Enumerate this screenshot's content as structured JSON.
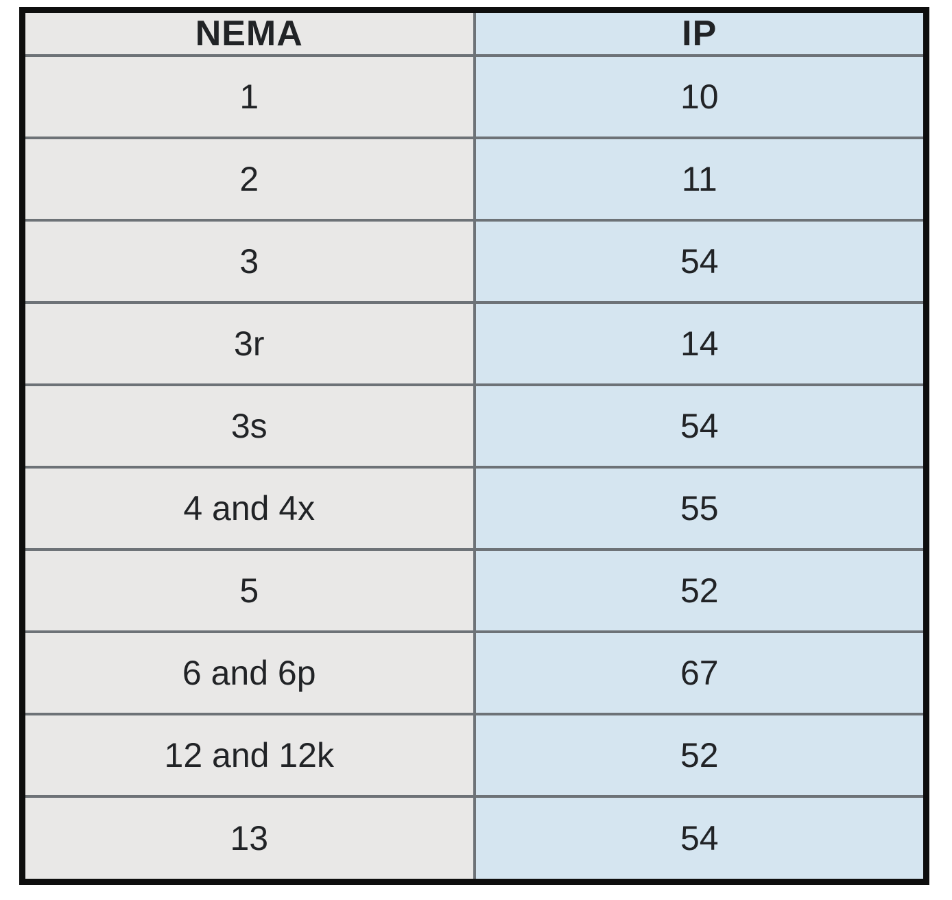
{
  "table": {
    "columns": [
      {
        "key": "nema",
        "label": "NEMA"
      },
      {
        "key": "ip",
        "label": "IP"
      }
    ],
    "rows": [
      {
        "nema": "1",
        "ip": "10"
      },
      {
        "nema": "2",
        "ip": "11"
      },
      {
        "nema": "3",
        "ip": "54"
      },
      {
        "nema": "3r",
        "ip": "14"
      },
      {
        "nema": "3s",
        "ip": "54"
      },
      {
        "nema": "4 and 4x",
        "ip": "55"
      },
      {
        "nema": "5",
        "ip": "52"
      },
      {
        "nema": "6 and 6p",
        "ip": "67"
      },
      {
        "nema": "12 and 12k",
        "ip": "52"
      },
      {
        "nema": "13",
        "ip": "54"
      }
    ]
  },
  "chart_data": {
    "type": "table",
    "title": "",
    "columns": [
      "NEMA",
      "IP"
    ],
    "rows": [
      [
        "1",
        "10"
      ],
      [
        "2",
        "11"
      ],
      [
        "3",
        "54"
      ],
      [
        "3r",
        "14"
      ],
      [
        "3s",
        "54"
      ],
      [
        "4 and 4x",
        "55"
      ],
      [
        "5",
        "52"
      ],
      [
        "6 and 6p",
        "67"
      ],
      [
        "12 and 12k",
        "52"
      ],
      [
        "13",
        "54"
      ]
    ]
  },
  "colors": {
    "nema_column_bg": "#e9e8e7",
    "ip_column_bg": "#d5e5f0",
    "grid_line": "#6d7277",
    "outer_border": "#0e0e0e",
    "text": "#212326",
    "page_bg": "#ffffff"
  }
}
